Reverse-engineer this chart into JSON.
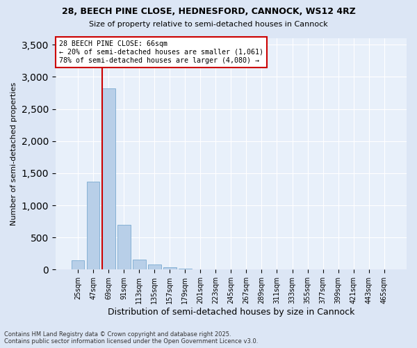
{
  "title_line1": "28, BEECH PINE CLOSE, HEDNESFORD, CANNOCK, WS12 4RZ",
  "title_line2": "Size of property relative to semi-detached houses in Cannock",
  "xlabel": "Distribution of semi-detached houses by size in Cannock",
  "ylabel": "Number of semi-detached properties",
  "categories": [
    "25sqm",
    "47sqm",
    "69sqm",
    "91sqm",
    "113sqm",
    "135sqm",
    "157sqm",
    "179sqm",
    "201sqm",
    "223sqm",
    "245sqm",
    "267sqm",
    "289sqm",
    "311sqm",
    "333sqm",
    "355sqm",
    "377sqm",
    "399sqm",
    "421sqm",
    "443sqm",
    "465sqm"
  ],
  "values": [
    140,
    1370,
    2820,
    700,
    155,
    85,
    35,
    20,
    0,
    0,
    0,
    0,
    0,
    0,
    0,
    0,
    0,
    0,
    0,
    0,
    0
  ],
  "bar_color": "#b8cfe8",
  "bar_edge_color": "#7aaad0",
  "vline_color": "#cc0000",
  "annotation_title": "28 BEECH PINE CLOSE: 66sqm",
  "annotation_line1": "← 20% of semi-detached houses are smaller (1,061)",
  "annotation_line2": "78% of semi-detached houses are larger (4,080) →",
  "annotation_box_color": "#ffffff",
  "annotation_box_edge": "#cc0000",
  "ylim": [
    0,
    3600
  ],
  "yticks": [
    0,
    500,
    1000,
    1500,
    2000,
    2500,
    3000,
    3500
  ],
  "background_color": "#dce6f5",
  "plot_bg_color": "#e8f0fa",
  "footer_line1": "Contains HM Land Registry data © Crown copyright and database right 2025.",
  "footer_line2": "Contains public sector information licensed under the Open Government Licence v3.0."
}
